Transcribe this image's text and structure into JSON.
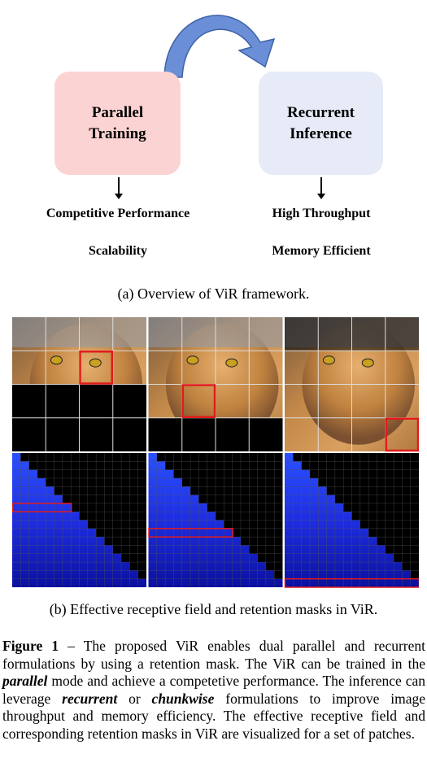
{
  "diagram": {
    "left_box": {
      "line1": "Parallel",
      "line2": "Training"
    },
    "right_box": {
      "line1": "Recurrent",
      "line2": "Inference"
    },
    "left_items": [
      "Competitive Performance",
      "Scalability"
    ],
    "right_items": [
      "High Throughput",
      "Memory Efficient"
    ],
    "colors": {
      "left_box": "#fcd3d3",
      "right_box": "#e6ebf7",
      "arrow": "#6a8fd6"
    }
  },
  "caption_a": "(a) Overview of ViR framework.",
  "caption_b": "(b) Effective receptive field and retention masks in ViR.",
  "figure_caption": {
    "label": "Figure 1",
    "dash": " – ",
    "t1": "The proposed ViR enables dual parallel and recurrent formulations by using a retention mask. The ViR can be trained in the ",
    "em1": "parallel",
    "t2": " mode and achieve a competetive performance. The inference can leverage ",
    "em2": "recurrent",
    "t3": " or ",
    "em3": "chunkwise",
    "t4": " formulations to improve image throughput and memory efficiency. The effective receptive field and corresponding retention masks in ViR are visualized for a set of patches."
  },
  "panels": [
    {
      "name": "panel-1",
      "visible_rows": 2,
      "highlight_row": 1,
      "highlight_col": 2
    },
    {
      "name": "panel-2",
      "visible_rows": 3,
      "highlight_row": 2,
      "highlight_col": 1
    },
    {
      "name": "panel-3",
      "visible_rows": 4,
      "highlight_row": 3,
      "highlight_col": 3
    }
  ]
}
